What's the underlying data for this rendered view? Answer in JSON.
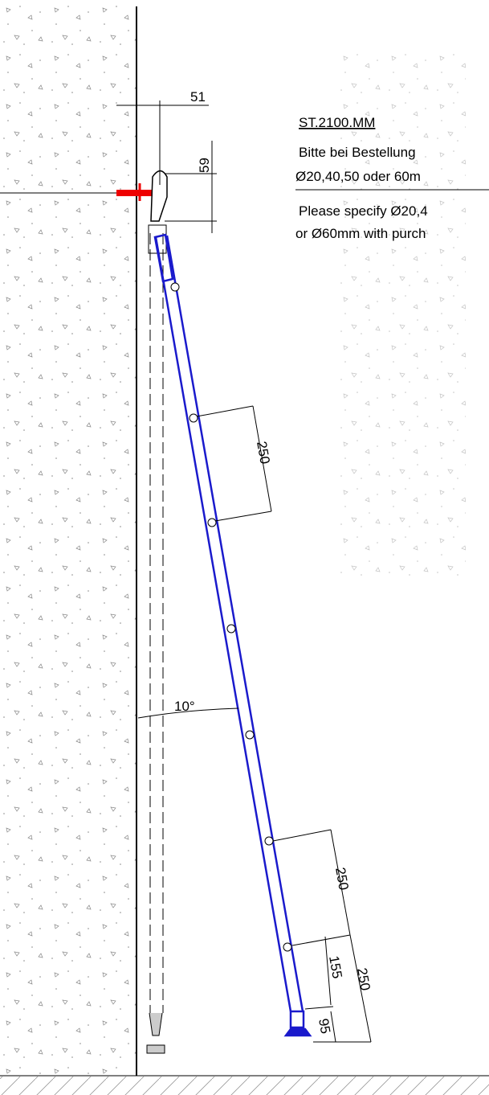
{
  "title": {
    "code": "ST.2100.MM",
    "de_line1": "Bitte bei Bestellung",
    "de_line2": "Ø20,40,50 oder 60m",
    "en_line1": "Please specify Ø20,4",
    "en_line2": "or Ø60mm with purch"
  },
  "dimensions": {
    "top_offset": "51",
    "top_height": "59",
    "rung_spacing_upper": "250",
    "angle": "10°",
    "rung_spacing_lower": "250",
    "foot_to_rung": "155",
    "foot_span": "250",
    "foot_height": "95"
  }
}
